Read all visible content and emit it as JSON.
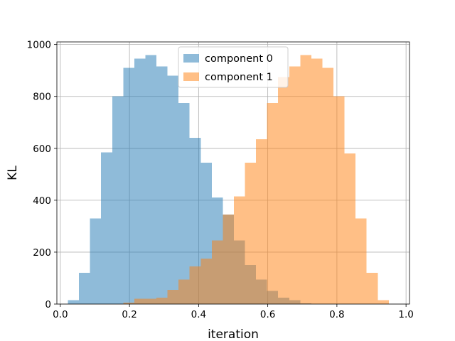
{
  "chart_data": {
    "type": "bar",
    "title": "",
    "xlabel": "iteration",
    "ylabel": "KL",
    "xlim": [
      -0.01,
      1.01
    ],
    "ylim": [
      0,
      1010
    ],
    "xticks": [
      0.0,
      0.2,
      0.4,
      0.6,
      0.8,
      1.0
    ],
    "xtick_labels": [
      "0.0",
      "0.2",
      "0.4",
      "0.6",
      "0.8",
      "1.0"
    ],
    "yticks": [
      0,
      200,
      400,
      600,
      800,
      1000
    ],
    "ytick_labels": [
      "0",
      "200",
      "400",
      "600",
      "800",
      "1000"
    ],
    "grid": true,
    "legend_position": "top-center",
    "series": [
      {
        "name": "component 0",
        "color": "#1f77b4",
        "alpha": 0.5,
        "bin_start": 0.022,
        "bin_width": 0.032,
        "values": [
          15,
          120,
          330,
          585,
          800,
          910,
          945,
          960,
          915,
          880,
          775,
          640,
          545,
          410,
          345,
          245,
          150,
          95,
          50,
          25,
          15,
          3
        ]
      },
      {
        "name": "component 1",
        "color": "#ff7f0e",
        "alpha": 0.5,
        "bin_start": 0.182,
        "bin_width": 0.032,
        "values": [
          5,
          20,
          20,
          25,
          55,
          95,
          145,
          175,
          245,
          345,
          415,
          545,
          635,
          775,
          875,
          915,
          960,
          945,
          910,
          800,
          580,
          330,
          120,
          15
        ]
      }
    ]
  }
}
